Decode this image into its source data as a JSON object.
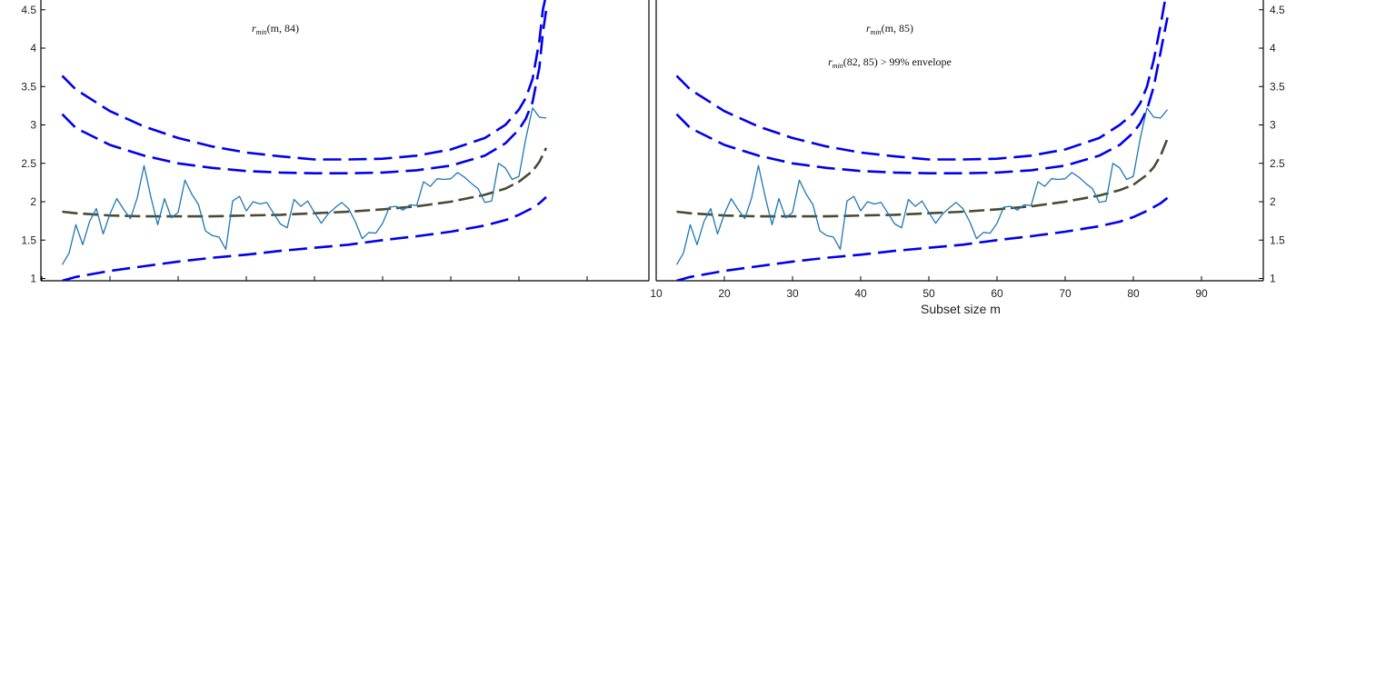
{
  "colors": {
    "envelope": "#0000ee",
    "median": "#4a4a32",
    "observed": "#1f77b4",
    "axis": "#000000"
  },
  "chart_data": [
    {
      "type": "line",
      "panel": "left",
      "annotation": "rmin(m, 84)",
      "annotation_parts": {
        "r": "r",
        "sub": "min",
        "args": "(m, 84)"
      },
      "x_tick_labels_shown": false,
      "xlim": [
        10,
        99
      ],
      "xticks": [
        10,
        20,
        30,
        40,
        50,
        60,
        70,
        80,
        90
      ],
      "ylim": [
        1,
        4.6
      ],
      "yticks": [
        1,
        1.5,
        2,
        2.5,
        3,
        3.5,
        4,
        4.5
      ],
      "ytick_labels": [
        "1",
        "1.5",
        "2",
        "2.5",
        "3",
        "3.5",
        "4",
        "4.5"
      ],
      "y_axis_side": "left",
      "series": [
        {
          "style": "dashed",
          "role": "envelope",
          "x": [
            13,
            15,
            20,
            25,
            30,
            35,
            40,
            45,
            50,
            55,
            60,
            65,
            70,
            75,
            78,
            80,
            81,
            82,
            83,
            83.5,
            84
          ],
          "values": [
            3.64,
            3.46,
            3.18,
            2.98,
            2.83,
            2.72,
            2.64,
            2.59,
            2.55,
            2.55,
            2.56,
            2.6,
            2.68,
            2.83,
            3.0,
            3.2,
            3.35,
            3.6,
            4.1,
            4.5,
            4.7
          ]
        },
        {
          "style": "dashed",
          "role": "envelope",
          "x": [
            13,
            15,
            20,
            25,
            30,
            35,
            40,
            45,
            50,
            55,
            60,
            65,
            70,
            75,
            78,
            80,
            81,
            82,
            83,
            83.5,
            84
          ],
          "values": [
            3.14,
            2.96,
            2.74,
            2.6,
            2.5,
            2.44,
            2.4,
            2.38,
            2.37,
            2.37,
            2.38,
            2.41,
            2.47,
            2.6,
            2.76,
            2.94,
            3.08,
            3.3,
            3.75,
            4.2,
            4.5
          ]
        },
        {
          "style": "dashed",
          "role": "median",
          "x": [
            13,
            15,
            20,
            25,
            30,
            35,
            40,
            45,
            50,
            55,
            60,
            65,
            70,
            75,
            78,
            80,
            82,
            83,
            84
          ],
          "values": [
            1.87,
            1.85,
            1.82,
            1.81,
            1.81,
            1.81,
            1.82,
            1.83,
            1.85,
            1.87,
            1.9,
            1.94,
            2.0,
            2.09,
            2.17,
            2.26,
            2.4,
            2.52,
            2.7
          ]
        },
        {
          "style": "dashed",
          "role": "envelope",
          "x": [
            13,
            15,
            20,
            25,
            30,
            35,
            40,
            45,
            50,
            55,
            60,
            65,
            70,
            75,
            78,
            80,
            82,
            83,
            84
          ],
          "values": [
            0.97,
            1.02,
            1.1,
            1.16,
            1.22,
            1.27,
            1.31,
            1.36,
            1.4,
            1.44,
            1.5,
            1.55,
            1.61,
            1.69,
            1.76,
            1.83,
            1.92,
            1.98,
            2.06
          ]
        },
        {
          "style": "solid",
          "role": "observed",
          "x": [
            13,
            14,
            15,
            16,
            17,
            18,
            19,
            20,
            21,
            22,
            23,
            24,
            25,
            26,
            27,
            28,
            29,
            30,
            31,
            32,
            33,
            34,
            35,
            36,
            37,
            38,
            39,
            40,
            41,
            42,
            43,
            44,
            45,
            46,
            47,
            48,
            49,
            50,
            51,
            52,
            53,
            54,
            55,
            56,
            57,
            58,
            59,
            60,
            61,
            62,
            63,
            64,
            65,
            66,
            67,
            68,
            69,
            70,
            71,
            72,
            73,
            74,
            75,
            76,
            77,
            78,
            79,
            80,
            81,
            82,
            83,
            84
          ],
          "values": [
            1.18,
            1.33,
            1.7,
            1.44,
            1.74,
            1.91,
            1.58,
            1.84,
            2.04,
            1.9,
            1.78,
            2.05,
            2.47,
            2.06,
            1.7,
            2.04,
            1.79,
            1.86,
            2.28,
            2.1,
            1.96,
            1.62,
            1.56,
            1.54,
            1.38,
            2.01,
            2.07,
            1.88,
            2.0,
            1.97,
            1.99,
            1.85,
            1.71,
            1.66,
            2.03,
            1.94,
            2.01,
            1.86,
            1.72,
            1.84,
            1.92,
            1.99,
            1.91,
            1.74,
            1.52,
            1.6,
            1.59,
            1.72,
            1.93,
            1.94,
            1.89,
            1.96,
            1.95,
            2.26,
            2.2,
            2.3,
            2.29,
            2.3,
            2.38,
            2.32,
            2.24,
            2.17,
            1.99,
            2.01,
            2.5,
            2.44,
            2.29,
            2.33,
            2.82,
            3.22,
            3.1,
            3.09
          ]
        }
      ]
    },
    {
      "type": "line",
      "panel": "right",
      "annotation": "rmin(m, 85)",
      "annotation_parts": {
        "r": "r",
        "sub": "min",
        "args": "(m, 85)"
      },
      "annotation2": "rmin(82, 85) > 99% envelope",
      "annotation2_parts": {
        "r": "r",
        "sub": "min",
        "rest": "(82, 85) > 99% envelope"
      },
      "xlabel": "Subset size m",
      "xlim": [
        10,
        99
      ],
      "xticks": [
        10,
        20,
        30,
        40,
        50,
        60,
        70,
        80,
        90
      ],
      "xtick_labels": [
        "10",
        "20",
        "30",
        "40",
        "50",
        "60",
        "70",
        "80",
        "90"
      ],
      "ylim": [
        1,
        4.6
      ],
      "yticks": [
        1,
        1.5,
        2,
        2.5,
        3,
        3.5,
        4,
        4.5
      ],
      "ytick_labels": [
        "1",
        "1.5",
        "2",
        "2.5",
        "3",
        "3.5",
        "4",
        "4.5"
      ],
      "y_axis_side": "right",
      "series": [
        {
          "style": "dashed",
          "role": "envelope",
          "x": [
            13,
            15,
            20,
            25,
            30,
            35,
            40,
            45,
            50,
            55,
            60,
            65,
            70,
            75,
            78,
            80,
            81,
            82,
            83,
            84,
            85
          ],
          "values": [
            3.64,
            3.46,
            3.18,
            2.98,
            2.83,
            2.72,
            2.64,
            2.59,
            2.55,
            2.55,
            2.56,
            2.6,
            2.68,
            2.83,
            3.0,
            3.15,
            3.28,
            3.5,
            3.85,
            4.3,
            4.8
          ]
        },
        {
          "style": "dashed",
          "role": "envelope",
          "x": [
            13,
            15,
            20,
            25,
            30,
            35,
            40,
            45,
            50,
            55,
            60,
            65,
            70,
            75,
            78,
            80,
            81,
            82,
            83,
            84,
            85
          ],
          "values": [
            3.14,
            2.96,
            2.74,
            2.6,
            2.5,
            2.44,
            2.4,
            2.38,
            2.37,
            2.37,
            2.38,
            2.41,
            2.47,
            2.6,
            2.74,
            2.9,
            3.02,
            3.2,
            3.5,
            3.95,
            4.4
          ]
        },
        {
          "style": "dashed",
          "role": "median",
          "x": [
            13,
            15,
            20,
            25,
            30,
            35,
            40,
            45,
            50,
            55,
            60,
            65,
            70,
            75,
            78,
            80,
            82,
            83,
            84,
            85
          ],
          "values": [
            1.87,
            1.85,
            1.82,
            1.81,
            1.81,
            1.81,
            1.82,
            1.83,
            1.85,
            1.87,
            1.9,
            1.94,
            2.0,
            2.08,
            2.15,
            2.22,
            2.35,
            2.45,
            2.6,
            2.82
          ]
        },
        {
          "style": "dashed",
          "role": "envelope",
          "x": [
            13,
            15,
            20,
            25,
            30,
            35,
            40,
            45,
            50,
            55,
            60,
            65,
            70,
            75,
            78,
            80,
            82,
            83,
            84,
            85
          ],
          "values": [
            0.97,
            1.02,
            1.1,
            1.16,
            1.22,
            1.27,
            1.31,
            1.36,
            1.4,
            1.44,
            1.5,
            1.55,
            1.61,
            1.68,
            1.74,
            1.8,
            1.88,
            1.93,
            1.98,
            2.05
          ]
        },
        {
          "style": "solid",
          "role": "observed",
          "x": [
            13,
            14,
            15,
            16,
            17,
            18,
            19,
            20,
            21,
            22,
            23,
            24,
            25,
            26,
            27,
            28,
            29,
            30,
            31,
            32,
            33,
            34,
            35,
            36,
            37,
            38,
            39,
            40,
            41,
            42,
            43,
            44,
            45,
            46,
            47,
            48,
            49,
            50,
            51,
            52,
            53,
            54,
            55,
            56,
            57,
            58,
            59,
            60,
            61,
            62,
            63,
            64,
            65,
            66,
            67,
            68,
            69,
            70,
            71,
            72,
            73,
            74,
            75,
            76,
            77,
            78,
            79,
            80,
            81,
            82,
            83,
            84,
            85
          ],
          "values": [
            1.18,
            1.33,
            1.7,
            1.44,
            1.74,
            1.91,
            1.58,
            1.84,
            2.04,
            1.9,
            1.78,
            2.05,
            2.47,
            2.06,
            1.7,
            2.04,
            1.79,
            1.86,
            2.28,
            2.1,
            1.96,
            1.62,
            1.56,
            1.54,
            1.38,
            2.01,
            2.07,
            1.88,
            2.0,
            1.97,
            1.99,
            1.85,
            1.71,
            1.66,
            2.03,
            1.94,
            2.01,
            1.86,
            1.72,
            1.84,
            1.92,
            1.99,
            1.91,
            1.74,
            1.52,
            1.6,
            1.59,
            1.72,
            1.93,
            1.94,
            1.89,
            1.96,
            1.95,
            2.26,
            2.2,
            2.3,
            2.29,
            2.3,
            2.38,
            2.32,
            2.24,
            2.17,
            1.99,
            2.01,
            2.5,
            2.44,
            2.29,
            2.33,
            2.82,
            3.22,
            3.1,
            3.09,
            3.2
          ]
        }
      ]
    }
  ]
}
